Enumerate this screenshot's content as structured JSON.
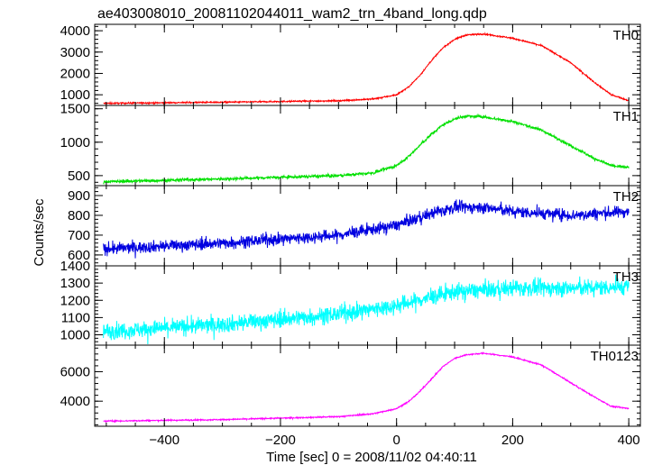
{
  "title": "ae403008010_20081102044011_wam2_trn_4band_long.qdp",
  "ylabel": "Counts/sec",
  "xlabel": "Time [sec] 0 = 2008/11/02 04:40:11",
  "chart_data": {
    "type": "line",
    "title": "ae403008010_20081102044011_wam2_trn_4band_long.qdp",
    "xlabel": "Time [sec] 0 = 2008/11/02 04:40:11",
    "ylabel": "Counts/sec",
    "xlim": [
      -520,
      420
    ],
    "x_ticks": [
      -400,
      -200,
      0,
      200,
      400
    ],
    "x_tick_labels": [
      "−400",
      "−200",
      "0",
      "200",
      "400"
    ],
    "x_start": -505,
    "x_end": 400,
    "grid": false,
    "panels": [
      {
        "name": "TH0",
        "color": "#ff0000",
        "ylim": [
          500,
          4300
        ],
        "y_ticks": [
          1000,
          2000,
          3000,
          4000
        ],
        "y_tick_labels": [
          "1000",
          "2000",
          "3000",
          "4000"
        ],
        "x": [
          -500,
          -300,
          -100,
          -40,
          0,
          20,
          40,
          60,
          80,
          100,
          120,
          150,
          200,
          250,
          300,
          340,
          370,
          400
        ],
        "y": [
          600,
          650,
          720,
          800,
          1000,
          1350,
          1900,
          2600,
          3200,
          3600,
          3800,
          3850,
          3650,
          3300,
          2500,
          1600,
          1000,
          720
        ],
        "noise": 30
      },
      {
        "name": "TH1",
        "color": "#00e000",
        "ylim": [
          350,
          1550
        ],
        "y_ticks": [
          500,
          1000,
          1500
        ],
        "y_tick_labels": [
          "500",
          "1000",
          "1500"
        ],
        "x": [
          -500,
          -300,
          -100,
          -40,
          0,
          20,
          40,
          60,
          80,
          100,
          120,
          150,
          200,
          250,
          300,
          340,
          370,
          400
        ],
        "y": [
          410,
          450,
          500,
          540,
          650,
          780,
          950,
          1120,
          1260,
          1350,
          1390,
          1380,
          1310,
          1180,
          950,
          760,
          650,
          620
        ],
        "noise": 20
      },
      {
        "name": "TH2",
        "color": "#0000e0",
        "ylim": [
          545,
          950
        ],
        "y_ticks": [
          600,
          700,
          800,
          900
        ],
        "y_tick_labels": [
          "600",
          "700",
          "800",
          "900"
        ],
        "x": [
          -500,
          -300,
          -100,
          0,
          50,
          100,
          150,
          200,
          300,
          400
        ],
        "y": [
          630,
          660,
          700,
          750,
          800,
          840,
          840,
          820,
          800,
          820
        ],
        "noise": 28
      },
      {
        "name": "TH3",
        "color": "#00ffff",
        "ylim": [
          940,
          1400
        ],
        "y_ticks": [
          1000,
          1100,
          1200,
          1300,
          1400
        ],
        "y_tick_labels": [
          "1000",
          "1100",
          "1200",
          "1300",
          "1400"
        ],
        "x": [
          -500,
          -300,
          -100,
          0,
          100,
          200,
          300,
          400
        ],
        "y": [
          1020,
          1060,
          1120,
          1170,
          1250,
          1270,
          1270,
          1280
        ],
        "noise": 45
      },
      {
        "name": "TH0123",
        "color": "#ff00ff",
        "ylim": [
          2300,
          7800
        ],
        "y_ticks": [
          4000,
          6000
        ],
        "y_tick_labels": [
          "4000",
          "6000"
        ],
        "x": [
          -500,
          -300,
          -100,
          -40,
          0,
          20,
          40,
          60,
          80,
          100,
          120,
          150,
          200,
          250,
          300,
          340,
          370,
          400
        ],
        "y": [
          2650,
          2750,
          2950,
          3150,
          3500,
          3950,
          4650,
          5500,
          6350,
          6900,
          7150,
          7250,
          7000,
          6450,
          5250,
          4300,
          3650,
          3500
        ],
        "noise": 40
      }
    ]
  }
}
